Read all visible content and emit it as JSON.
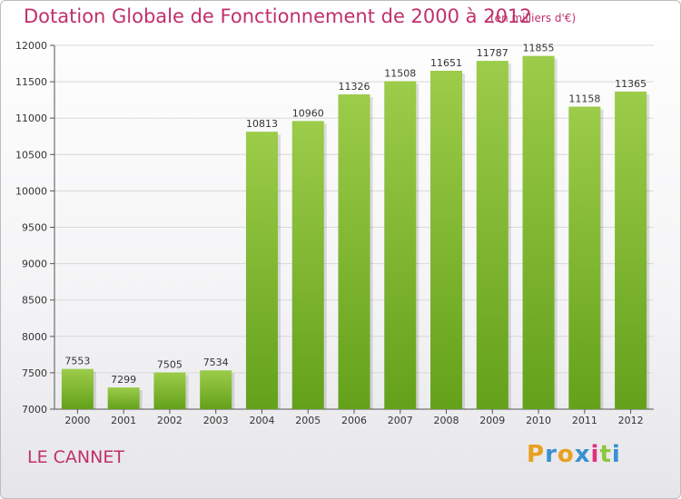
{
  "header": {
    "title": "Dotation Globale de Fonctionnement de 2000 à 2012",
    "subtitle": "(en milliers d'€)"
  },
  "footer": {
    "commune": "LE CANNET",
    "logo_text": "Proxiti",
    "logo_colors": [
      "#e8a020",
      "#3a8fd0",
      "#e8a020",
      "#3a8fd0",
      "#e03080",
      "#8dc63f",
      "#3a8fd0"
    ]
  },
  "chart_data": {
    "type": "bar",
    "title": "Dotation Globale de Fonctionnement de 2000 à 2012",
    "subtitle": "(en milliers d'€)",
    "xlabel": "",
    "ylabel": "",
    "categories": [
      "2000",
      "2001",
      "2002",
      "2003",
      "2004",
      "2005",
      "2006",
      "2007",
      "2008",
      "2009",
      "2010",
      "2011",
      "2012"
    ],
    "values": [
      7553,
      7299,
      7505,
      7534,
      10813,
      10960,
      11326,
      11508,
      11651,
      11787,
      11855,
      11158,
      11365
    ],
    "ylim": [
      7000,
      12000
    ],
    "yticks": [
      7000,
      7500,
      8000,
      8500,
      9000,
      9500,
      10000,
      10500,
      11000,
      11500,
      12000
    ],
    "grid": true,
    "bar_color_top": "#9ccc4a",
    "bar_color_bottom": "#64a11b",
    "grid_color": "#d9d9d9"
  }
}
